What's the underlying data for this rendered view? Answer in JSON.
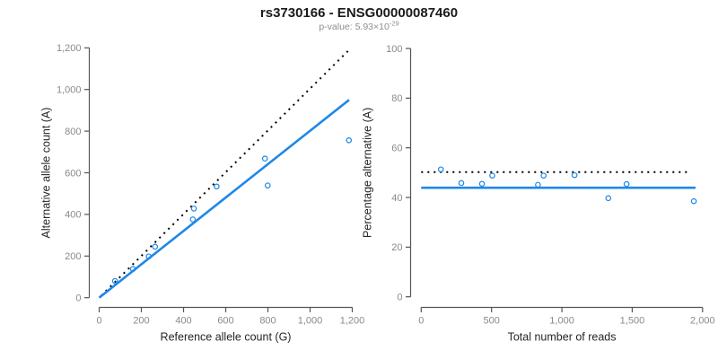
{
  "header": {
    "title": "rs3730166 - ENSG00000087460",
    "subtitle_base": "p-value: 5.93×10",
    "subtitle_exponent": "-29"
  },
  "colors": {
    "accent_blue": "#1E87E8",
    "dotted_line": "#000000",
    "axis_line": "#555555",
    "tick_label": "#8a8a8a",
    "axis_title": "#262626",
    "subtitle": "#8e8e8e"
  },
  "chart_data": [
    {
      "id": "allele-counts",
      "type": "scatter",
      "title": "",
      "xlabel": "Reference allele count (G)",
      "ylabel": "Alternative allele count (A)",
      "xlim": [
        0,
        1200
      ],
      "ylim": [
        0,
        1200
      ],
      "xticks": [
        0,
        200,
        400,
        600,
        800,
        1000,
        1200
      ],
      "yticks": [
        0,
        200,
        400,
        600,
        800,
        1000,
        1200
      ],
      "grid": false,
      "legend": "none",
      "points": [
        [
          75,
          80
        ],
        [
          160,
          138
        ],
        [
          235,
          198
        ],
        [
          265,
          245
        ],
        [
          444,
          376
        ],
        [
          449,
          428
        ],
        [
          557,
          534
        ],
        [
          799,
          539
        ],
        [
          786,
          668
        ],
        [
          1184,
          756
        ]
      ],
      "lines": [
        {
          "name": "identity-line",
          "style": "dotted",
          "color": "#000000",
          "from": [
            10,
            10
          ],
          "to": [
            1180,
            1185
          ]
        },
        {
          "name": "fit-line",
          "style": "solid",
          "color": "#1E87E8",
          "from": [
            0,
            0
          ],
          "to": [
            1185,
            950
          ]
        }
      ]
    },
    {
      "id": "percentage-alternative",
      "type": "scatter",
      "title": "",
      "xlabel": "Total number of reads",
      "ylabel": "Percentage alternative (A)",
      "xlim": [
        0,
        2000
      ],
      "ylim": [
        0,
        100
      ],
      "xticks": [
        0,
        500,
        1000,
        1500,
        2000
      ],
      "yticks": [
        0,
        20,
        40,
        60,
        80,
        100
      ],
      "grid": false,
      "legend": "none",
      "points": [
        [
          140,
          51.3
        ],
        [
          285,
          45.8
        ],
        [
          432,
          45.5
        ],
        [
          505,
          48.8
        ],
        [
          830,
          45.1
        ],
        [
          870,
          48.8
        ],
        [
          1090,
          49.0
        ],
        [
          1330,
          39.7
        ],
        [
          1460,
          45.4
        ],
        [
          1938,
          38.5
        ]
      ],
      "lines": [
        {
          "name": "expected-line",
          "style": "dotted",
          "color": "#000000",
          "from": [
            0,
            50.2
          ],
          "to": [
            1915,
            50.2
          ]
        },
        {
          "name": "fit-line",
          "style": "solid",
          "color": "#1E87E8",
          "from": [
            0,
            43.9
          ],
          "to": [
            1950,
            43.9
          ]
        }
      ]
    }
  ]
}
